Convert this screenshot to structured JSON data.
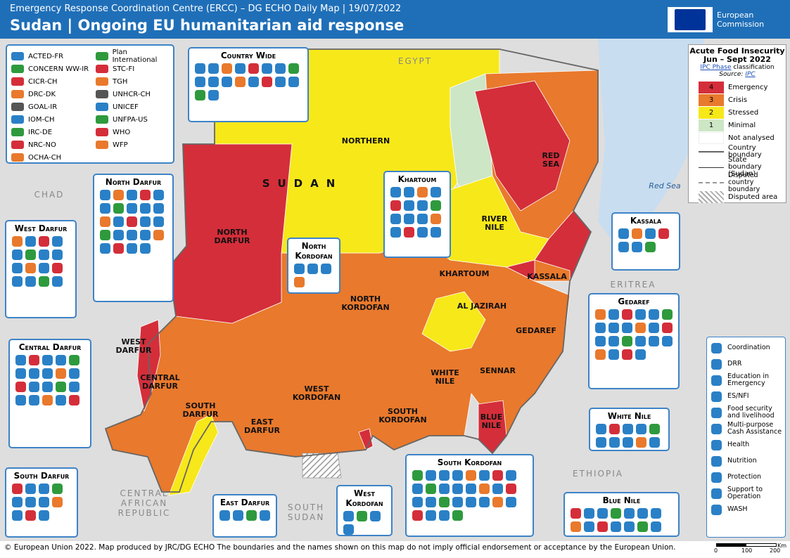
{
  "header": {
    "subtitle": "Emergency Response Coordination Centre (ERCC) – DG ECHO Daily Map | 19/07/2022",
    "title": "Sudan | Ongoing EU humanitarian aid response",
    "logo": [
      "European",
      "Commission"
    ]
  },
  "partners": {
    "left": [
      "ACTED-FR",
      "CONCERN WW-IR",
      "CICR-CH",
      "DRC-DK",
      "GOAL-IR",
      "IOM-CH",
      "IRC-DE",
      "NRC-NO",
      "OCHA-CH"
    ],
    "right": [
      "Plan International",
      "STC-FI",
      "TGH",
      "UNHCR-CH",
      "UNICEF",
      "UNFPA-US",
      "WHO",
      "WFP"
    ]
  },
  "food_insecurity": {
    "title": "Acute Food Insecurity",
    "period": "Jun – Sept 2022",
    "classification_link": "IPC Phase",
    "classification": "classification",
    "source_label": "Source:",
    "source": "IPC",
    "phases": [
      {
        "phase": 4,
        "label": "Emergency",
        "color": "#d42e3a"
      },
      {
        "phase": 3,
        "label": "Crisis",
        "color": "#e9792c"
      },
      {
        "phase": 2,
        "label": "Stressed",
        "color": "#f7e81a"
      },
      {
        "phase": 1,
        "label": "Minimal",
        "color": "#cde6c6"
      }
    ],
    "not_analysed": "Not analysed",
    "boundaries": [
      "Country boundary",
      "State boundary (Sudan)",
      "Disputed country boundary",
      "Disputed area"
    ]
  },
  "sectors": [
    "Coordination",
    "DRR",
    "Education in Emergency",
    "ES/NFI",
    "Food security and livelihood",
    "Multi-purpose Cash Assistance",
    "Health",
    "Nutrition",
    "Protection",
    "Support to Operation",
    "WASH"
  ],
  "countries": [
    "EGYPT",
    "CHAD",
    "ERITREA",
    "ETHIOPIA",
    "CENTRAL AFRICAN REPUBLIC",
    "SOUTH SUDAN"
  ],
  "country_label": "SUDAN",
  "sea": "Red Sea",
  "states": [
    "NORTHERN",
    "RED SEA",
    "RIVER NILE",
    "KHARTOUM",
    "KASSALA",
    "NORTH DARFUR",
    "NORTH KORDOFAN",
    "AL JAZIRAH",
    "GEDAREF",
    "WEST DARFUR",
    "CENTRAL DARFUR",
    "SOUTH DARFUR",
    "EAST DARFUR",
    "WEST KORDOFAN",
    "SOUTH KORDOFAN",
    "WHITE NILE",
    "SENNAR",
    "BLUE NILE"
  ],
  "response_boxes": [
    "Country Wide",
    "North Darfur",
    "West Darfur",
    "Central Darfur",
    "South Darfur",
    "East Darfur",
    "West Kordofan",
    "South Kordofan",
    "North Kordofan",
    "Khartoum",
    "Kassala",
    "Gedaref",
    "White Nile",
    "Blue Nile"
  ],
  "footer": "© European Union 2022. Map produced by JRC/DG ECHO The boundaries and the names shown on this map do not imply official endorsement or acceptance by the European Union.",
  "scale": {
    "ticks": [
      0,
      100,
      200
    ],
    "unit": "Km"
  }
}
